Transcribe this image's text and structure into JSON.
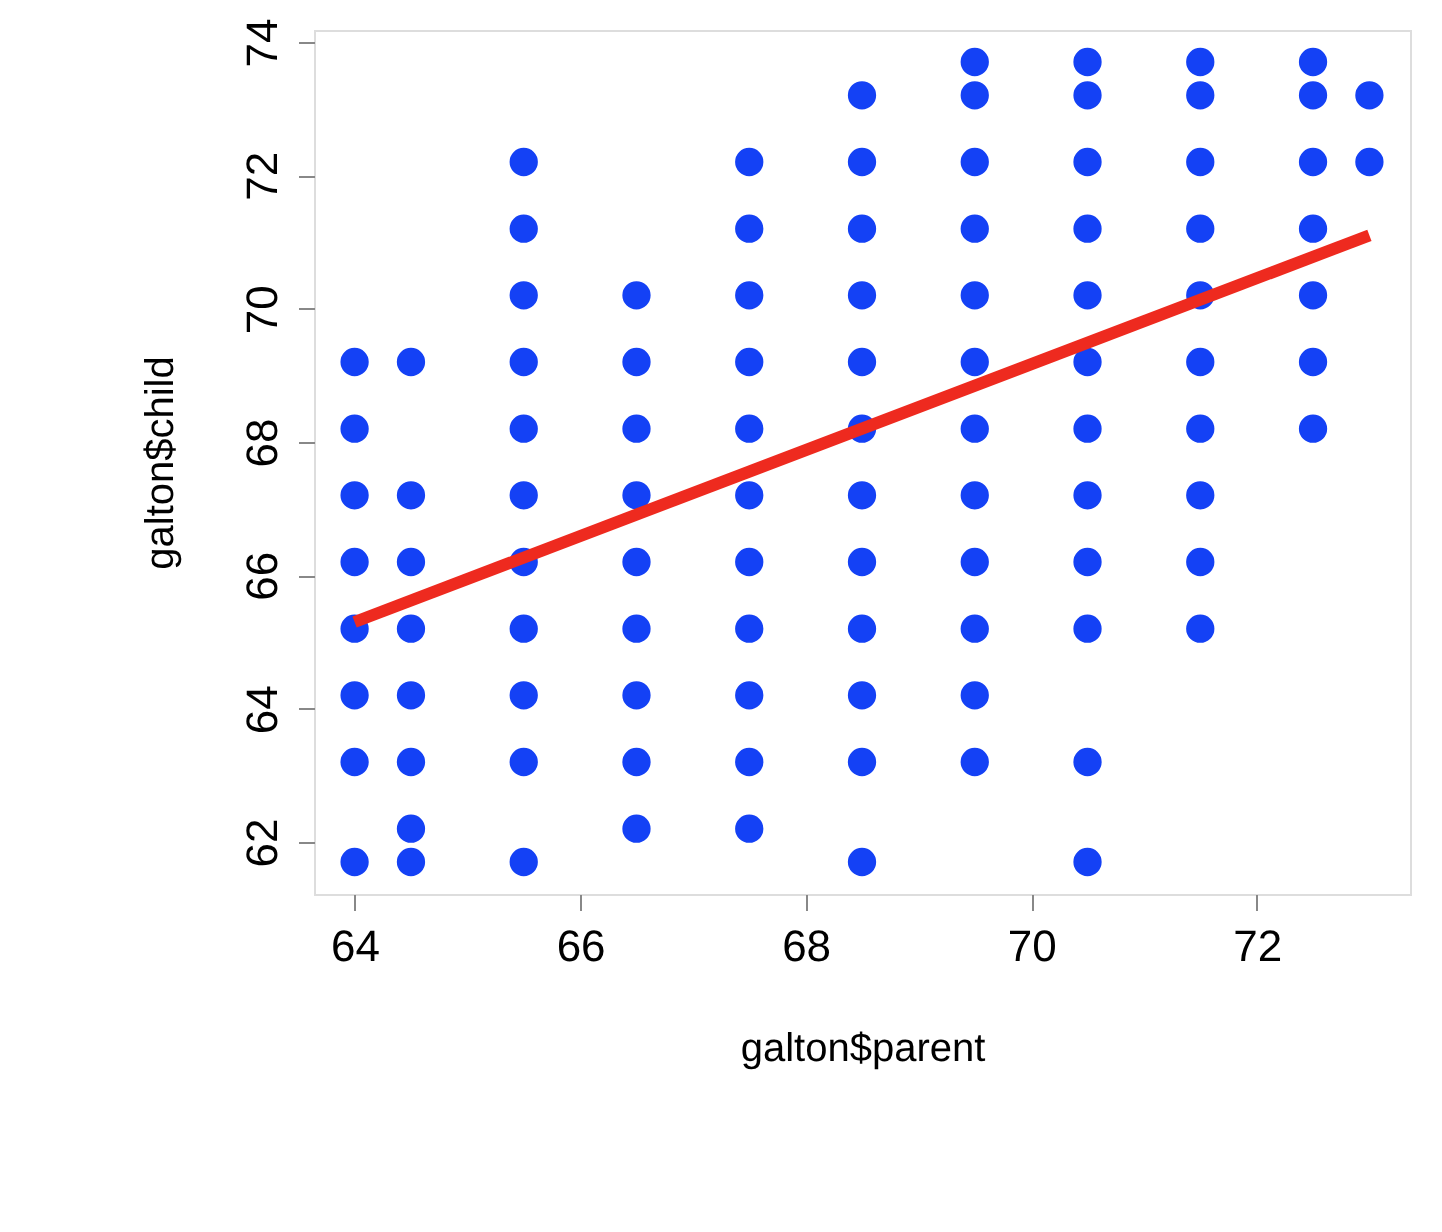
{
  "chart_data": {
    "type": "scatter",
    "xlabel": "galton$parent",
    "ylabel": "galton$child",
    "xlim": [
      63.64,
      73.36
    ],
    "ylim": [
      61.22,
      74.18
    ],
    "xticks": [
      64,
      66,
      68,
      70,
      72
    ],
    "yticks": [
      62,
      64,
      66,
      68,
      70,
      72,
      74
    ],
    "grid": false,
    "series": [
      {
        "color": "#1441f5",
        "marker": "circle",
        "x": [
          64,
          64,
          64,
          64,
          64,
          64,
          64,
          64,
          64.5,
          64.5,
          64.5,
          64.5,
          64.5,
          64.5,
          64.5,
          64.5,
          65.5,
          65.5,
          65.5,
          65.5,
          65.5,
          65.5,
          65.5,
          65.5,
          65.5,
          65.5,
          65.5,
          66.5,
          66.5,
          66.5,
          66.5,
          66.5,
          66.5,
          66.5,
          66.5,
          66.5,
          67.5,
          67.5,
          67.5,
          67.5,
          67.5,
          67.5,
          67.5,
          67.5,
          67.5,
          67.5,
          67.5,
          68.5,
          68.5,
          68.5,
          68.5,
          68.5,
          68.5,
          68.5,
          68.5,
          68.5,
          68.5,
          68.5,
          68.5,
          69.5,
          69.5,
          69.5,
          69.5,
          69.5,
          69.5,
          69.5,
          69.5,
          69.5,
          69.5,
          69.5,
          69.5,
          70.5,
          70.5,
          70.5,
          70.5,
          70.5,
          70.5,
          70.5,
          70.5,
          70.5,
          70.5,
          70.5,
          70.5,
          71.5,
          71.5,
          71.5,
          71.5,
          71.5,
          71.5,
          71.5,
          71.5,
          71.5,
          71.5,
          72.5,
          72.5,
          72.5,
          72.5,
          72.5,
          72.5,
          72.5,
          73,
          73
        ],
        "values": [
          69.2,
          68.2,
          67.2,
          66.2,
          65.2,
          64.2,
          63.2,
          61.7,
          69.2,
          67.2,
          66.2,
          65.2,
          64.2,
          63.2,
          62.2,
          61.7,
          72.2,
          71.2,
          70.2,
          69.2,
          68.2,
          67.2,
          66.2,
          65.2,
          64.2,
          63.2,
          61.7,
          70.2,
          69.2,
          68.2,
          67.2,
          66.2,
          65.2,
          64.2,
          63.2,
          62.2,
          72.2,
          71.2,
          70.2,
          69.2,
          68.2,
          67.2,
          66.2,
          65.2,
          64.2,
          63.2,
          62.2,
          73.2,
          72.2,
          71.2,
          70.2,
          69.2,
          68.2,
          67.2,
          66.2,
          65.2,
          64.2,
          63.2,
          61.7,
          73.7,
          73.2,
          72.2,
          71.2,
          70.2,
          69.2,
          68.2,
          67.2,
          66.2,
          65.2,
          64.2,
          63.2,
          73.7,
          73.2,
          72.2,
          71.2,
          70.2,
          69.2,
          68.2,
          67.2,
          66.2,
          65.2,
          63.2,
          61.7,
          73.7,
          73.2,
          72.2,
          71.2,
          70.2,
          69.2,
          68.2,
          67.2,
          66.2,
          65.2,
          73.7,
          73.2,
          72.2,
          71.2,
          70.2,
          69.2,
          68.2,
          73.2,
          72.2
        ]
      },
      {
        "type": "line",
        "color": "#ee2a1f",
        "line_style": "solid",
        "marker": "none",
        "x": [
          64,
          73
        ],
        "values": [
          65.3,
          71.1
        ]
      }
    ]
  }
}
